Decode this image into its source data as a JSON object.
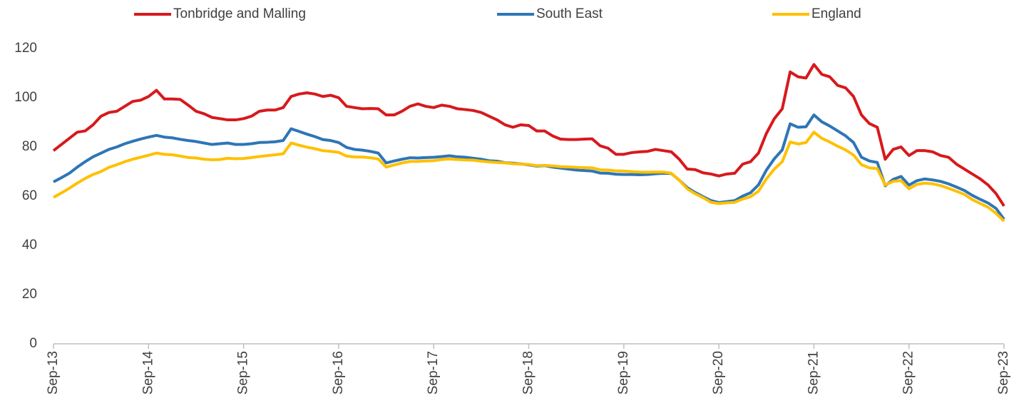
{
  "chart_data": {
    "type": "line",
    "legend": "top",
    "grid": false,
    "ylim": [
      0,
      120
    ],
    "yticks": [
      0,
      20,
      40,
      60,
      80,
      100,
      120
    ],
    "categories": [
      "Sep-13",
      null,
      null,
      null,
      null,
      null,
      null,
      null,
      null,
      null,
      null,
      null,
      "Sep-14",
      null,
      null,
      null,
      null,
      null,
      null,
      null,
      null,
      null,
      null,
      null,
      "Sep-15",
      null,
      null,
      null,
      null,
      null,
      null,
      null,
      null,
      null,
      null,
      null,
      "Sep-16",
      null,
      null,
      null,
      null,
      null,
      null,
      null,
      null,
      null,
      null,
      null,
      "Sep-17",
      null,
      null,
      null,
      null,
      null,
      null,
      null,
      null,
      null,
      null,
      null,
      "Sep-18",
      null,
      null,
      null,
      null,
      null,
      null,
      null,
      null,
      null,
      null,
      null,
      "Sep-19",
      null,
      null,
      null,
      null,
      null,
      null,
      null,
      null,
      null,
      null,
      null,
      "Sep-20",
      null,
      null,
      null,
      null,
      null,
      null,
      null,
      null,
      null,
      null,
      null,
      "Sep-21",
      null,
      null,
      null,
      null,
      null,
      null,
      null,
      null,
      null,
      null,
      null,
      "Sep-22",
      null,
      null,
      null,
      null,
      null,
      null,
      null,
      null,
      null,
      null,
      null,
      "Sep-23"
    ],
    "series": [
      {
        "name": "Tonbridge and Malling",
        "color": "#d7191c",
        "values": [
          78.5,
          81,
          83.5,
          86,
          86.5,
          89,
          92.5,
          94,
          94.5,
          96.5,
          98.5,
          99,
          100.5,
          103,
          99.5,
          99.5,
          99.3,
          97,
          94.5,
          93.5,
          92,
          91.5,
          91,
          91,
          91.5,
          92.5,
          94.5,
          95,
          95,
          96,
          100.5,
          101.5,
          102,
          101.5,
          100.5,
          101,
          100,
          96.5,
          96,
          95.5,
          95.6,
          95.5,
          93,
          93,
          94.5,
          96.5,
          97.5,
          96.5,
          96,
          97,
          96.5,
          95.5,
          95.2,
          94.8,
          94,
          92.5,
          91,
          89,
          88,
          89,
          88.7,
          86.5,
          86.5,
          84.5,
          83.2,
          83,
          83,
          83.2,
          83.3,
          80.5,
          79.5,
          77,
          77,
          77.7,
          78,
          78.2,
          79,
          78.5,
          78,
          75,
          71,
          70.8,
          69.5,
          69,
          68.2,
          69,
          69.3,
          73,
          74,
          77.5,
          85.5,
          91.5,
          95.5,
          110.5,
          108.5,
          108,
          113.5,
          109.5,
          108.5,
          105,
          104,
          100.5,
          93,
          89.5,
          88,
          75,
          79,
          80,
          76.5,
          78.5,
          78.5,
          78,
          76.5,
          75.8,
          73,
          71,
          69,
          67,
          64.5,
          61,
          56
        ]
      },
      {
        "name": "South East",
        "color": "#2e75b6",
        "values": [
          65.8,
          67.5,
          69.3,
          71.8,
          74,
          76,
          77.5,
          79,
          80,
          81.3,
          82.3,
          83.2,
          84,
          84.7,
          84,
          83.7,
          83.1,
          82.6,
          82.2,
          81.6,
          81,
          81.3,
          81.6,
          81,
          81,
          81.3,
          81.8,
          81.9,
          82.1,
          82.6,
          87.4,
          86.3,
          85.2,
          84.2,
          83,
          82.6,
          81.8,
          79.8,
          79,
          78.7,
          78.2,
          77.5,
          73.5,
          74.3,
          75,
          75.6,
          75.5,
          75.7,
          75.8,
          76.1,
          76.4,
          76,
          75.8,
          75.4,
          75,
          74.4,
          74.2,
          73.6,
          73.4,
          73.1,
          72.7,
          72.2,
          72.4,
          71.8,
          71.4,
          71,
          70.6,
          70.4,
          70.2,
          69.4,
          69.3,
          68.9,
          68.8,
          68.8,
          68.7,
          68.8,
          69.1,
          69.3,
          69.2,
          66.5,
          63.5,
          61.5,
          59.8,
          58.2,
          57.4,
          57.8,
          58.2,
          60,
          61.4,
          64.6,
          70.6,
          75.2,
          78.8,
          89.4,
          88,
          88.2,
          93,
          90.2,
          88.5,
          86.5,
          84.5,
          81.8,
          75.8,
          74.3,
          73.7,
          64.2,
          66.8,
          68,
          64.5,
          66.3,
          67,
          66.6,
          66,
          65,
          63.7,
          62.3,
          60.3,
          58.7,
          57.2,
          55,
          50.6
        ]
      },
      {
        "name": "England",
        "color": "#ffc000",
        "values": [
          59.5,
          61.3,
          63.2,
          65.3,
          67.2,
          68.8,
          70,
          71.7,
          72.8,
          74,
          75,
          75.8,
          76.6,
          77.5,
          77,
          76.8,
          76.3,
          75.7,
          75.5,
          75,
          74.8,
          74.9,
          75.4,
          75.2,
          75.3,
          75.7,
          76.1,
          76.5,
          76.8,
          77.2,
          81.6,
          80.7,
          79.9,
          79.3,
          78.5,
          78.2,
          77.8,
          76.3,
          75.9,
          75.9,
          75.6,
          75.1,
          71.8,
          72.7,
          73.5,
          74.1,
          74.1,
          74.3,
          74.4,
          74.9,
          75.1,
          74.9,
          74.7,
          74.6,
          74.2,
          73.9,
          73.7,
          73.5,
          73.2,
          73,
          72.9,
          72.4,
          72.5,
          72.3,
          72,
          71.9,
          71.7,
          71.6,
          71.5,
          70.7,
          70.6,
          70.3,
          70.2,
          70,
          69.8,
          69.7,
          69.8,
          69.8,
          69.3,
          66.5,
          63,
          61,
          59.4,
          57.5,
          57,
          57.3,
          57.5,
          58.8,
          59.8,
          62,
          67,
          71,
          74,
          82,
          81.2,
          81.8,
          86,
          83.5,
          82,
          80.3,
          78.8,
          76.7,
          72.8,
          71.5,
          71.2,
          64.5,
          66,
          66.3,
          63,
          64.8,
          65.3,
          65,
          64.3,
          63.2,
          62,
          60.7,
          58.6,
          57,
          55.5,
          53,
          49.8
        ]
      }
    ]
  }
}
